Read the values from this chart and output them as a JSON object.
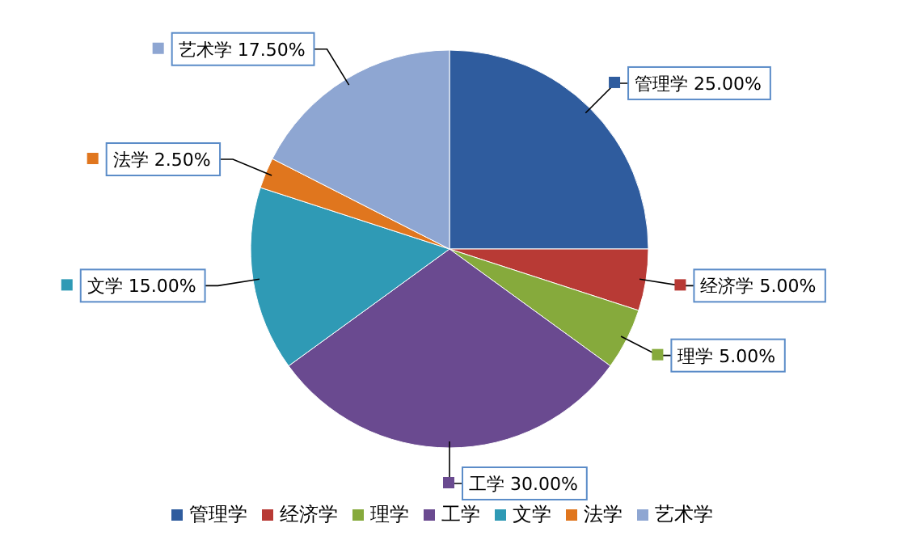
{
  "chart_data": {
    "type": "pie",
    "categories": [
      "管理学",
      "经济学",
      "理学",
      "工学",
      "文学",
      "法学",
      "艺术学"
    ],
    "values": [
      25,
      5,
      5,
      30,
      15,
      2.5,
      17.5
    ],
    "value_labels": [
      "25.00%",
      "5.00%",
      "5.00%",
      "30.00%",
      "15.00%",
      "2.50%",
      "17.50%"
    ],
    "colors": [
      "#2f5c9e",
      "#b83a35",
      "#86aa3c",
      "#6a4a90",
      "#2f9ab5",
      "#e0761e",
      "#8ea6d2"
    ],
    "legend": "bottom"
  }
}
